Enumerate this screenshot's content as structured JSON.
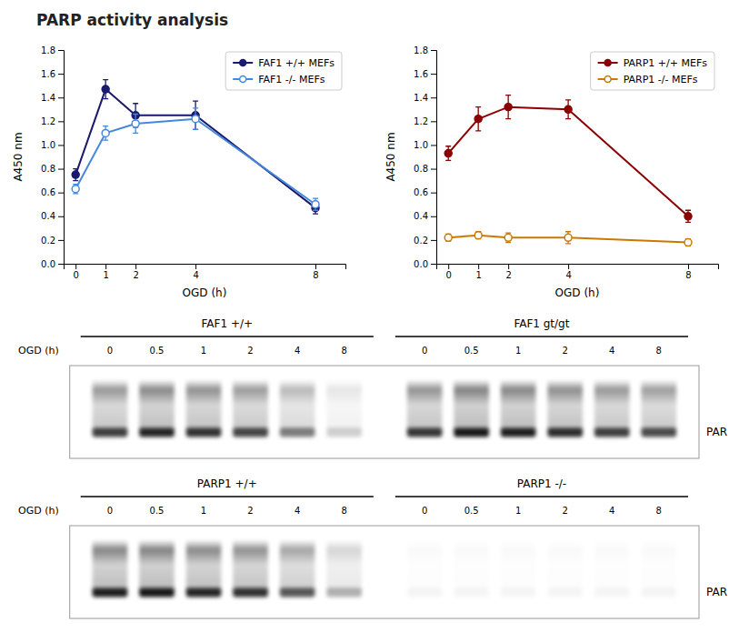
{
  "chart_data": [
    {
      "type": "line",
      "title": "PARP activity analysis",
      "xlabel": "OGD (h)",
      "ylabel": "A450 nm",
      "x": [
        0,
        1,
        2,
        4,
        8
      ],
      "xlim": [
        -0.4,
        9.0
      ],
      "xticks": [
        0,
        1,
        2,
        4,
        8
      ],
      "ylim": [
        0.0,
        1.8
      ],
      "yticks": [
        {
          "value": 0,
          "label": "0.0"
        },
        0.2,
        0.4,
        0.6,
        0.8,
        {
          "value": 1,
          "label": "1.0"
        },
        1.2,
        1.4,
        1.6,
        1.8
      ],
      "grid": false,
      "legend": "top-right",
      "series": [
        {
          "name": "FAF1 +/+ MEFs",
          "color": "#1a1a6e",
          "marker": "circle",
          "values": [
            0.75,
            1.47,
            1.25,
            1.25,
            0.47
          ],
          "errors": [
            0.05,
            0.08,
            0.1,
            0.12,
            0.05
          ]
        },
        {
          "name": "FAF1 -/- MEFs",
          "color": "#4488dd",
          "marker": "open-circle",
          "values": [
            0.63,
            1.1,
            1.18,
            1.22,
            0.5
          ],
          "errors": [
            0.04,
            0.06,
            0.08,
            0.09,
            0.05
          ]
        }
      ]
    },
    {
      "type": "line",
      "xlabel": "OGD (h)",
      "ylabel": "A450 nm",
      "x": [
        0,
        1,
        2,
        4,
        8
      ],
      "xlim": [
        -0.4,
        9.0
      ],
      "xticks": [
        0,
        1,
        2,
        4,
        8
      ],
      "ylim": [
        0.0,
        1.8
      ],
      "yticks": [
        {
          "value": 0,
          "label": "0.0"
        },
        0.2,
        0.4,
        0.6,
        0.8,
        {
          "value": 1,
          "label": "1.0"
        },
        1.2,
        1.4,
        1.6,
        1.8
      ],
      "grid": false,
      "legend": "top-right",
      "series": [
        {
          "name": "PARP1 +/+ MEFs",
          "color": "#8B0000",
          "marker": "circle",
          "values": [
            0.93,
            1.22,
            1.32,
            1.3,
            0.4
          ],
          "errors": [
            0.06,
            0.1,
            0.1,
            0.08,
            0.05
          ]
        },
        {
          "name": "PARP1 -/- MEFs",
          "color": "#cc7700",
          "marker": "open-circle",
          "values": [
            0.22,
            0.24,
            0.22,
            0.22,
            0.18
          ],
          "errors": [
            0.03,
            0.03,
            0.04,
            0.05,
            0.03
          ]
        }
      ]
    },
    {
      "type": "blot",
      "xlabel": "OGD (h)",
      "categories": [
        "0",
        "0.5",
        "1",
        "2",
        "4",
        "8"
      ],
      "annotations": [
        "PAR"
      ],
      "series": [
        {
          "name": "FAF1 +/+",
          "values": [
            0.75,
            0.85,
            0.8,
            0.72,
            0.5,
            0.18
          ]
        },
        {
          "name": "FAF1 gt/gt",
          "values": [
            0.78,
            0.9,
            0.88,
            0.82,
            0.75,
            0.7
          ]
        }
      ]
    },
    {
      "type": "blot",
      "xlabel": "OGD (h)",
      "categories": [
        "0",
        "0.5",
        "1",
        "2",
        "4",
        "8"
      ],
      "annotations": [
        "PAR"
      ],
      "series": [
        {
          "name": "PARP1 +/+",
          "values": [
            0.88,
            0.9,
            0.85,
            0.8,
            0.65,
            0.3
          ]
        },
        {
          "name": "PARP1 -/-",
          "values": [
            0.04,
            0.04,
            0.04,
            0.04,
            0.04,
            0.04
          ]
        }
      ]
    }
  ]
}
